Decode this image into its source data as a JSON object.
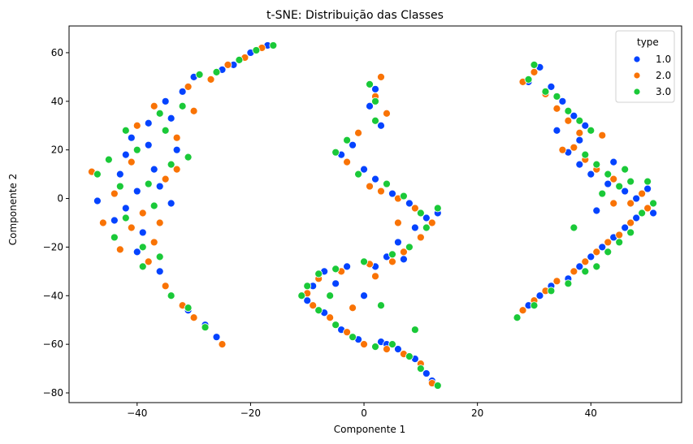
{
  "chart_data": {
    "type": "scatter",
    "title": "t-SNE: Distribuição das Classes",
    "xlabel": "Componente 1",
    "ylabel": "Componente 2",
    "xlim": [
      -52,
      56
    ],
    "ylim": [
      -84,
      71
    ],
    "x_ticks": [
      -40,
      -20,
      0,
      20,
      40
    ],
    "x_tick_labels": [
      "−40",
      "−20",
      "0",
      "20",
      "40"
    ],
    "y_ticks": [
      -80,
      -60,
      -40,
      -20,
      0,
      20,
      40,
      60
    ],
    "y_tick_labels": [
      "−80",
      "−60",
      "−40",
      "−20",
      "0",
      "20",
      "40",
      "60"
    ],
    "grid": false,
    "legend": {
      "title": "type",
      "placement": "top-right",
      "entries": [
        {
          "label": "1.0",
          "color": "#0443ff"
        },
        {
          "label": "2.0",
          "color": "#f97305"
        },
        {
          "label": "3.0",
          "color": "#1ac938"
        }
      ]
    },
    "series": [
      {
        "name": "1.0",
        "color": "#0443ff",
        "points": [
          [
            -47,
            -1
          ],
          [
            -44,
            -9
          ],
          [
            -43,
            10
          ],
          [
            -42,
            18
          ],
          [
            -41,
            25
          ],
          [
            -40,
            3
          ],
          [
            -39,
            -14
          ],
          [
            -38,
            31
          ],
          [
            -37,
            12
          ],
          [
            -36,
            -30
          ],
          [
            -35,
            40
          ],
          [
            -34,
            -2
          ],
          [
            -33,
            20
          ],
          [
            -32,
            44
          ],
          [
            -31,
            -46
          ],
          [
            -30,
            50
          ],
          [
            -28,
            -52
          ],
          [
            -26,
            -57
          ],
          [
            -25,
            53
          ],
          [
            -23,
            55
          ],
          [
            -20,
            60
          ],
          [
            -17,
            63
          ],
          [
            -42,
            -4
          ],
          [
            -40,
            -22
          ],
          [
            -36,
            5
          ],
          [
            -38,
            22
          ],
          [
            -34,
            33
          ],
          [
            2,
            45
          ],
          [
            1,
            38
          ],
          [
            3,
            30
          ],
          [
            -2,
            22
          ],
          [
            -4,
            18
          ],
          [
            0,
            12
          ],
          [
            2,
            8
          ],
          [
            5,
            2
          ],
          [
            8,
            -2
          ],
          [
            11,
            -8
          ],
          [
            13,
            -6
          ],
          [
            9,
            -12
          ],
          [
            6,
            -18
          ],
          [
            4,
            -24
          ],
          [
            2,
            -28
          ],
          [
            -3,
            -28
          ],
          [
            -7,
            -30
          ],
          [
            -9,
            -36
          ],
          [
            -10,
            -42
          ],
          [
            -7,
            -47
          ],
          [
            -4,
            -54
          ],
          [
            -1,
            -58
          ],
          [
            3,
            -59
          ],
          [
            6,
            -62
          ],
          [
            9,
            -66
          ],
          [
            11,
            -72
          ],
          [
            12,
            -75
          ],
          [
            0,
            -40
          ],
          [
            4,
            -60
          ],
          [
            -5,
            -35
          ],
          [
            7,
            -25
          ],
          [
            29,
            48
          ],
          [
            31,
            54
          ],
          [
            33,
            46
          ],
          [
            35,
            40
          ],
          [
            37,
            34
          ],
          [
            39,
            30
          ],
          [
            38,
            24
          ],
          [
            36,
            19
          ],
          [
            38,
            14
          ],
          [
            40,
            10
          ],
          [
            43,
            6
          ],
          [
            46,
            3
          ],
          [
            48,
            0
          ],
          [
            50,
            4
          ],
          [
            51,
            -6
          ],
          [
            48,
            -8
          ],
          [
            46,
            -12
          ],
          [
            44,
            -16
          ],
          [
            42,
            -20
          ],
          [
            40,
            -24
          ],
          [
            38,
            -28
          ],
          [
            36,
            -33
          ],
          [
            33,
            -36
          ],
          [
            31,
            -40
          ],
          [
            29,
            -44
          ],
          [
            44,
            15
          ],
          [
            41,
            -5
          ],
          [
            34,
            28
          ]
        ]
      },
      {
        "name": "2.0",
        "color": "#f97305",
        "points": [
          [
            -48,
            11
          ],
          [
            -46,
            -10
          ],
          [
            -44,
            2
          ],
          [
            -43,
            -21
          ],
          [
            -41,
            15
          ],
          [
            -40,
            30
          ],
          [
            -39,
            -6
          ],
          [
            -37,
            -18
          ],
          [
            -37,
            38
          ],
          [
            -35,
            8
          ],
          [
            -35,
            -36
          ],
          [
            -33,
            25
          ],
          [
            -32,
            -44
          ],
          [
            -31,
            46
          ],
          [
            -30,
            -49
          ],
          [
            -27,
            49
          ],
          [
            -25,
            -60
          ],
          [
            -24,
            55
          ],
          [
            -21,
            58
          ],
          [
            -18,
            62
          ],
          [
            -41,
            -12
          ],
          [
            -38,
            -26
          ],
          [
            -36,
            -10
          ],
          [
            -33,
            12
          ],
          [
            -30,
            36
          ],
          [
            3,
            50
          ],
          [
            2,
            42
          ],
          [
            4,
            35
          ],
          [
            -1,
            27
          ],
          [
            -3,
            15
          ],
          [
            1,
            5
          ],
          [
            3,
            3
          ],
          [
            6,
            0
          ],
          [
            9,
            -4
          ],
          [
            12,
            -10
          ],
          [
            10,
            -16
          ],
          [
            7,
            -22
          ],
          [
            5,
            -26
          ],
          [
            1,
            -27
          ],
          [
            -4,
            -30
          ],
          [
            -8,
            -33
          ],
          [
            -10,
            -39
          ],
          [
            -9,
            -44
          ],
          [
            -6,
            -49
          ],
          [
            -3,
            -55
          ],
          [
            0,
            -60
          ],
          [
            4,
            -62
          ],
          [
            7,
            -64
          ],
          [
            10,
            -68
          ],
          [
            12,
            -76
          ],
          [
            2,
            -32
          ],
          [
            6,
            -10
          ],
          [
            -2,
            -45
          ],
          [
            28,
            48
          ],
          [
            30,
            52
          ],
          [
            32,
            43
          ],
          [
            34,
            37
          ],
          [
            36,
            32
          ],
          [
            38,
            27
          ],
          [
            37,
            21
          ],
          [
            39,
            16
          ],
          [
            41,
            12
          ],
          [
            44,
            8
          ],
          [
            47,
            -2
          ],
          [
            49,
            2
          ],
          [
            50,
            -4
          ],
          [
            47,
            -10
          ],
          [
            45,
            -15
          ],
          [
            43,
            -18
          ],
          [
            41,
            -22
          ],
          [
            39,
            -26
          ],
          [
            37,
            -30
          ],
          [
            34,
            -34
          ],
          [
            32,
            -38
          ],
          [
            30,
            -42
          ],
          [
            28,
            -46
          ],
          [
            42,
            26
          ],
          [
            44,
            -2
          ],
          [
            35,
            20
          ]
        ]
      },
      {
        "name": "3.0",
        "color": "#1ac938",
        "points": [
          [
            -47,
            10
          ],
          [
            -45,
            16
          ],
          [
            -44,
            -16
          ],
          [
            -42,
            -8
          ],
          [
            -42,
            28
          ],
          [
            -40,
            20
          ],
          [
            -39,
            -20
          ],
          [
            -38,
            6
          ],
          [
            -36,
            -24
          ],
          [
            -36,
            35
          ],
          [
            -34,
            14
          ],
          [
            -34,
            -40
          ],
          [
            -32,
            38
          ],
          [
            -31,
            -45
          ],
          [
            -29,
            51
          ],
          [
            -28,
            -53
          ],
          [
            -26,
            52
          ],
          [
            -22,
            57
          ],
          [
            -19,
            61
          ],
          [
            -16,
            63
          ],
          [
            -43,
            5
          ],
          [
            -39,
            -28
          ],
          [
            -35,
            28
          ],
          [
            -31,
            17
          ],
          [
            -37,
            -3
          ],
          [
            1,
            47
          ],
          [
            2,
            40
          ],
          [
            2,
            32
          ],
          [
            -3,
            24
          ],
          [
            -5,
            19
          ],
          [
            -1,
            10
          ],
          [
            4,
            6
          ],
          [
            7,
            1
          ],
          [
            10,
            -6
          ],
          [
            13,
            -4
          ],
          [
            11,
            -12
          ],
          [
            8,
            -20
          ],
          [
            5,
            -23
          ],
          [
            0,
            -26
          ],
          [
            -5,
            -29
          ],
          [
            -8,
            -31
          ],
          [
            -10,
            -36
          ],
          [
            -11,
            -40
          ],
          [
            -8,
            -46
          ],
          [
            -5,
            -52
          ],
          [
            -2,
            -57
          ],
          [
            2,
            -61
          ],
          [
            5,
            -60
          ],
          [
            8,
            -65
          ],
          [
            10,
            -70
          ],
          [
            13,
            -77
          ],
          [
            -6,
            -40
          ],
          [
            3,
            -44
          ],
          [
            9,
            -54
          ],
          [
            27,
            -49
          ],
          [
            29,
            49
          ],
          [
            30,
            55
          ],
          [
            32,
            44
          ],
          [
            34,
            42
          ],
          [
            36,
            36
          ],
          [
            38,
            32
          ],
          [
            40,
            28
          ],
          [
            39,
            18
          ],
          [
            41,
            14
          ],
          [
            43,
            10
          ],
          [
            45,
            5
          ],
          [
            47,
            7
          ],
          [
            50,
            7
          ],
          [
            51,
            -2
          ],
          [
            49,
            -6
          ],
          [
            47,
            -14
          ],
          [
            45,
            -18
          ],
          [
            43,
            -22
          ],
          [
            41,
            -28
          ],
          [
            39,
            -30
          ],
          [
            36,
            -35
          ],
          [
            33,
            -38
          ],
          [
            30,
            -44
          ],
          [
            42,
            2
          ],
          [
            46,
            12
          ],
          [
            37,
            -12
          ]
        ]
      }
    ]
  }
}
